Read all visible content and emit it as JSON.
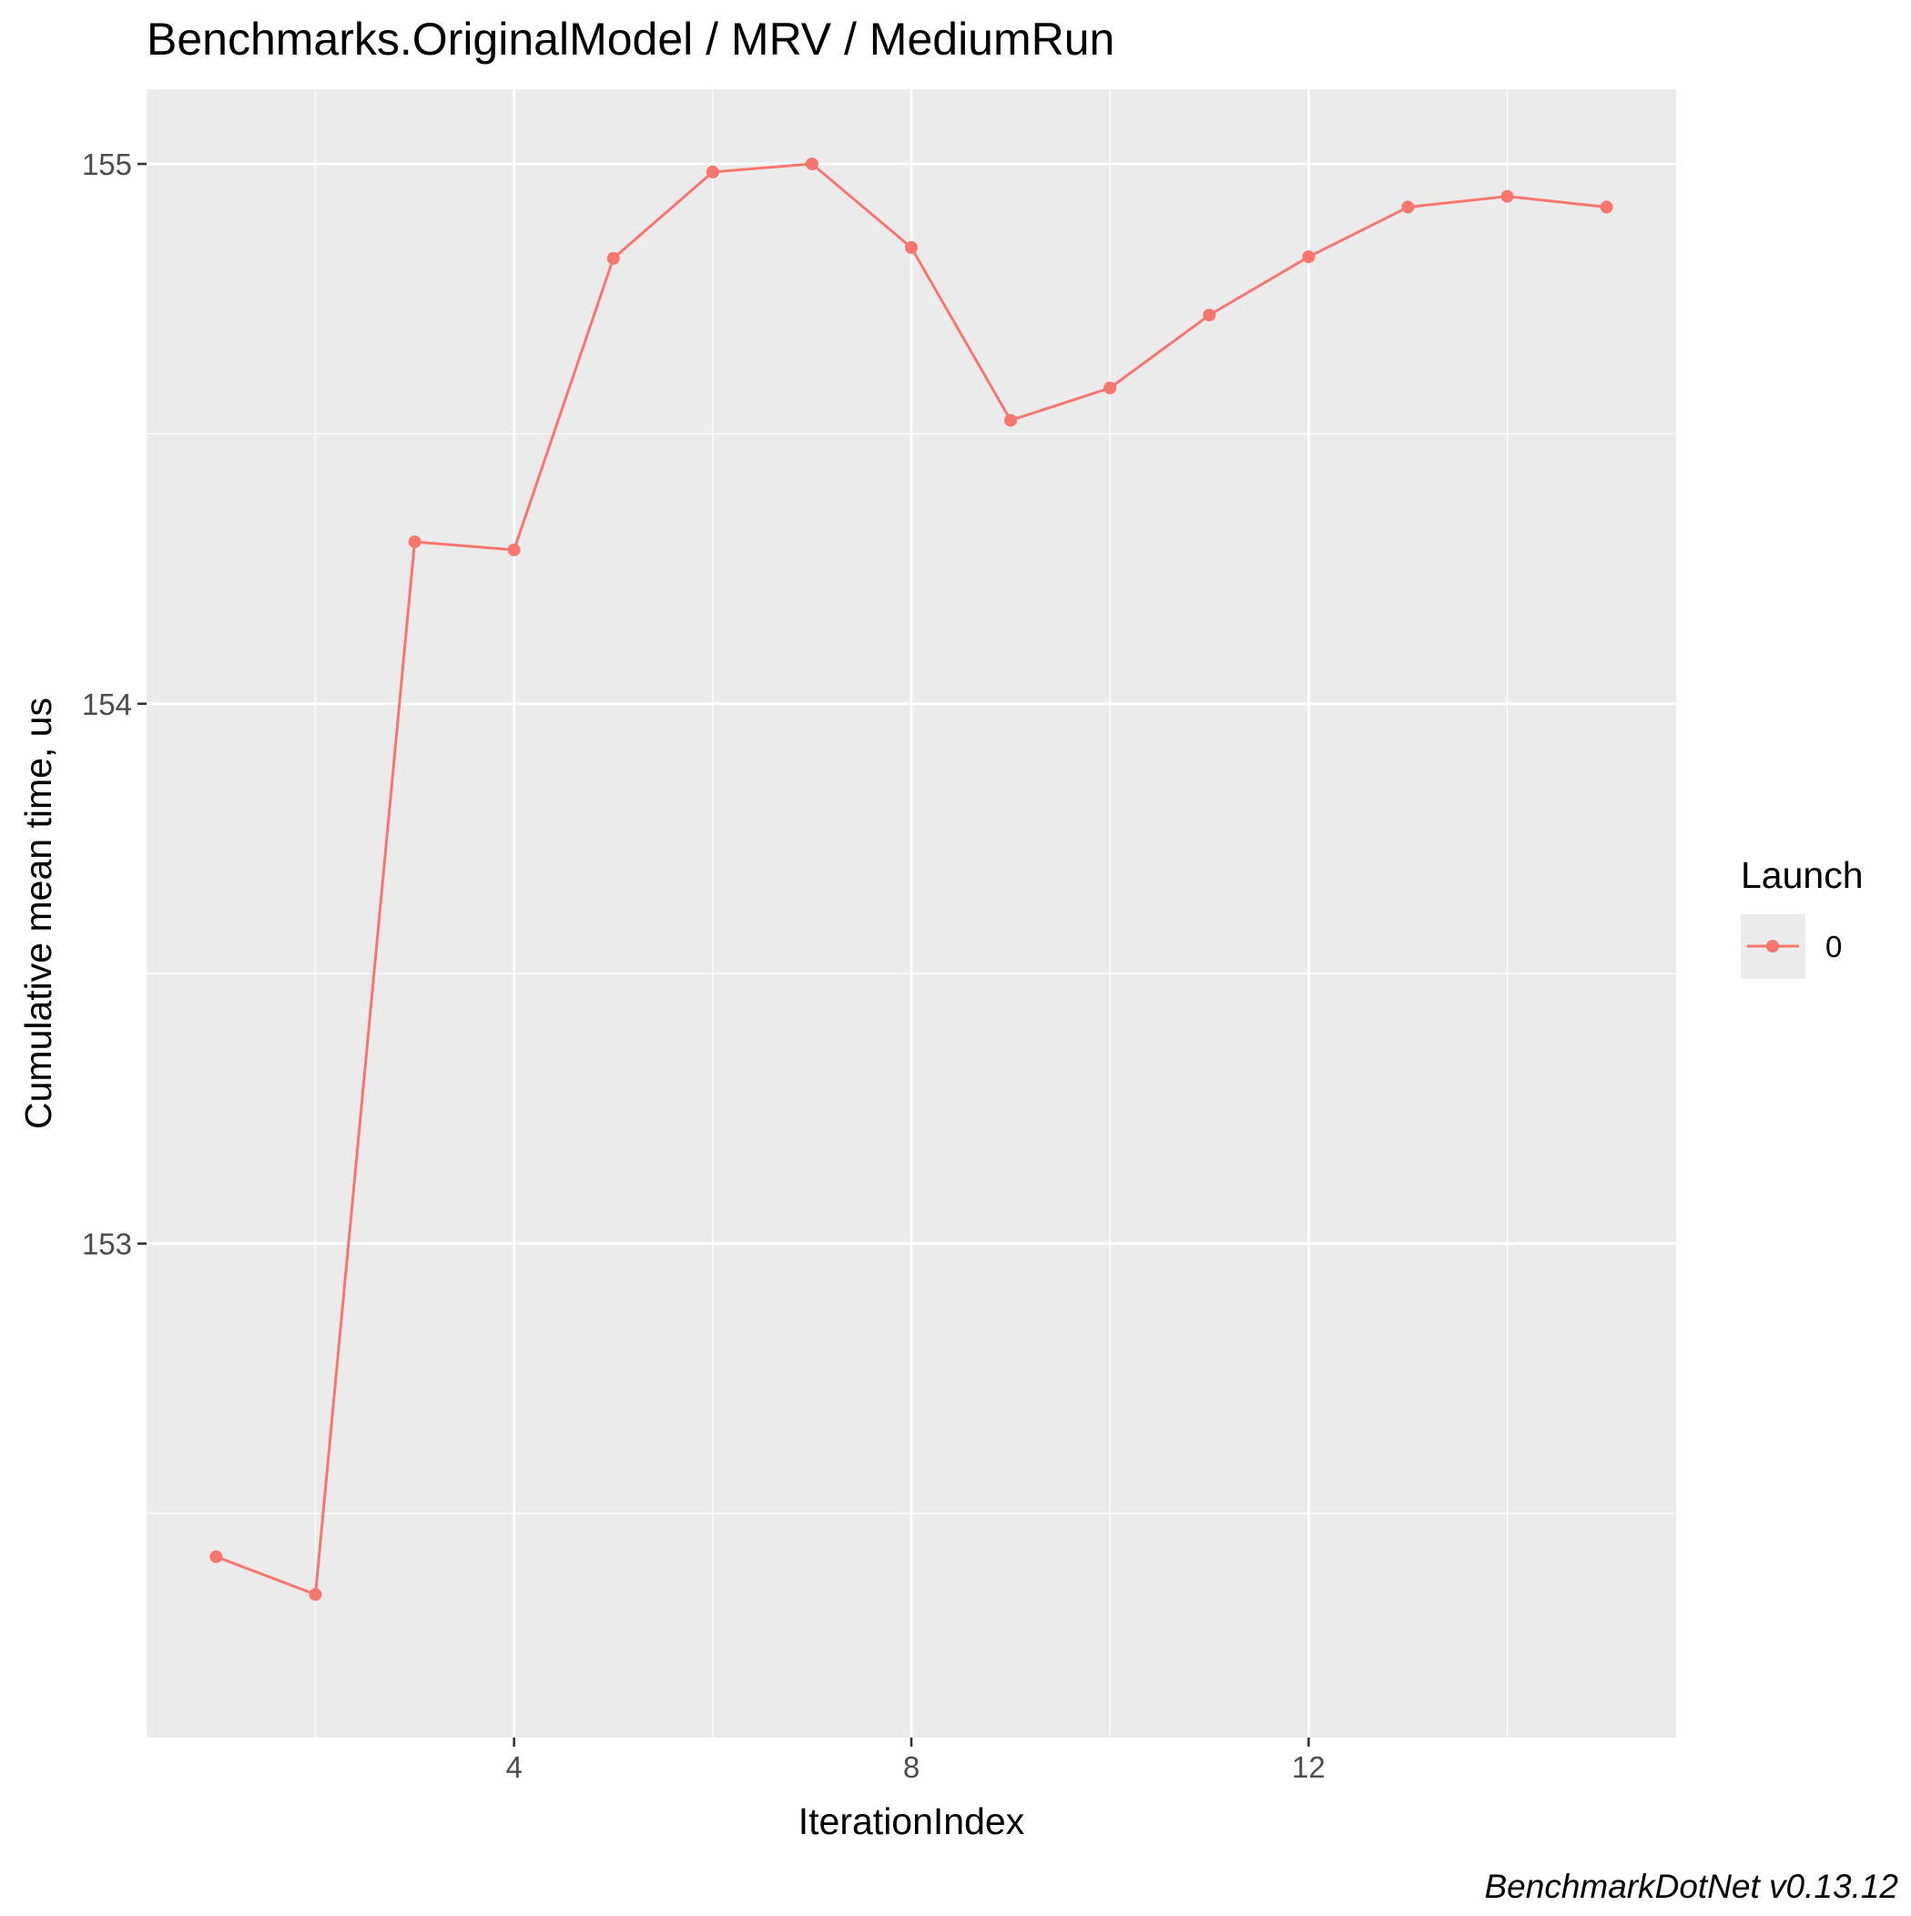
{
  "chart_data": {
    "type": "line",
    "title": "Benchmarks.OriginalModel / MRV / MediumRun",
    "xlabel": "IterationIndex",
    "ylabel": "Cumulative mean time, us",
    "caption": "BenchmarkDotNet v0.13.12",
    "x_ticks": [
      4,
      8,
      12
    ],
    "y_ticks": [
      153,
      154,
      155
    ],
    "xlim": [
      0.3,
      15.7
    ],
    "ylim": [
      152.22,
      155.0
    ],
    "grid": true,
    "legend": {
      "title": "Launch",
      "position": "right"
    },
    "series": [
      {
        "name": "0",
        "color": "#F8766D",
        "x": [
          1,
          2,
          3,
          4,
          5,
          6,
          7,
          8,
          9,
          10,
          11,
          12,
          13,
          14,
          15
        ],
        "y": [
          152.42,
          152.35,
          154.3,
          154.285,
          154.825,
          154.985,
          155.0,
          154.845,
          154.525,
          154.585,
          154.72,
          154.828,
          154.92,
          154.94,
          154.92
        ]
      }
    ]
  }
}
